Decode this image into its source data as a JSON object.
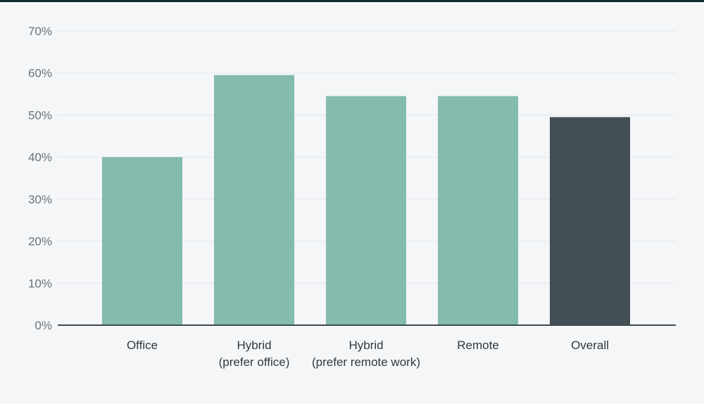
{
  "chart_data": {
    "type": "bar",
    "categories": [
      [
        "Office"
      ],
      [
        "Hybrid",
        "(prefer office)"
      ],
      [
        "Hybrid",
        "(prefer remote work)"
      ],
      [
        "Remote"
      ],
      [
        "Overall"
      ]
    ],
    "values": [
      40,
      59.5,
      54.5,
      54.5,
      49.5
    ],
    "bar_colors": [
      "#83bbad",
      "#83bbad",
      "#83bbad",
      "#83bbad",
      "#434f55"
    ],
    "y_ticks": [
      "0%",
      "10%",
      "20%",
      "30%",
      "40%",
      "50%",
      "60%",
      "70%"
    ],
    "ylim": [
      0,
      70
    ],
    "grid": true,
    "title": "",
    "xlabel": "",
    "ylabel": "",
    "colors": {
      "background": "#f4f6f8",
      "axis": "#3e4a50",
      "grid": "#e4e8eb",
      "top_bar": "#0f2a2f"
    }
  }
}
